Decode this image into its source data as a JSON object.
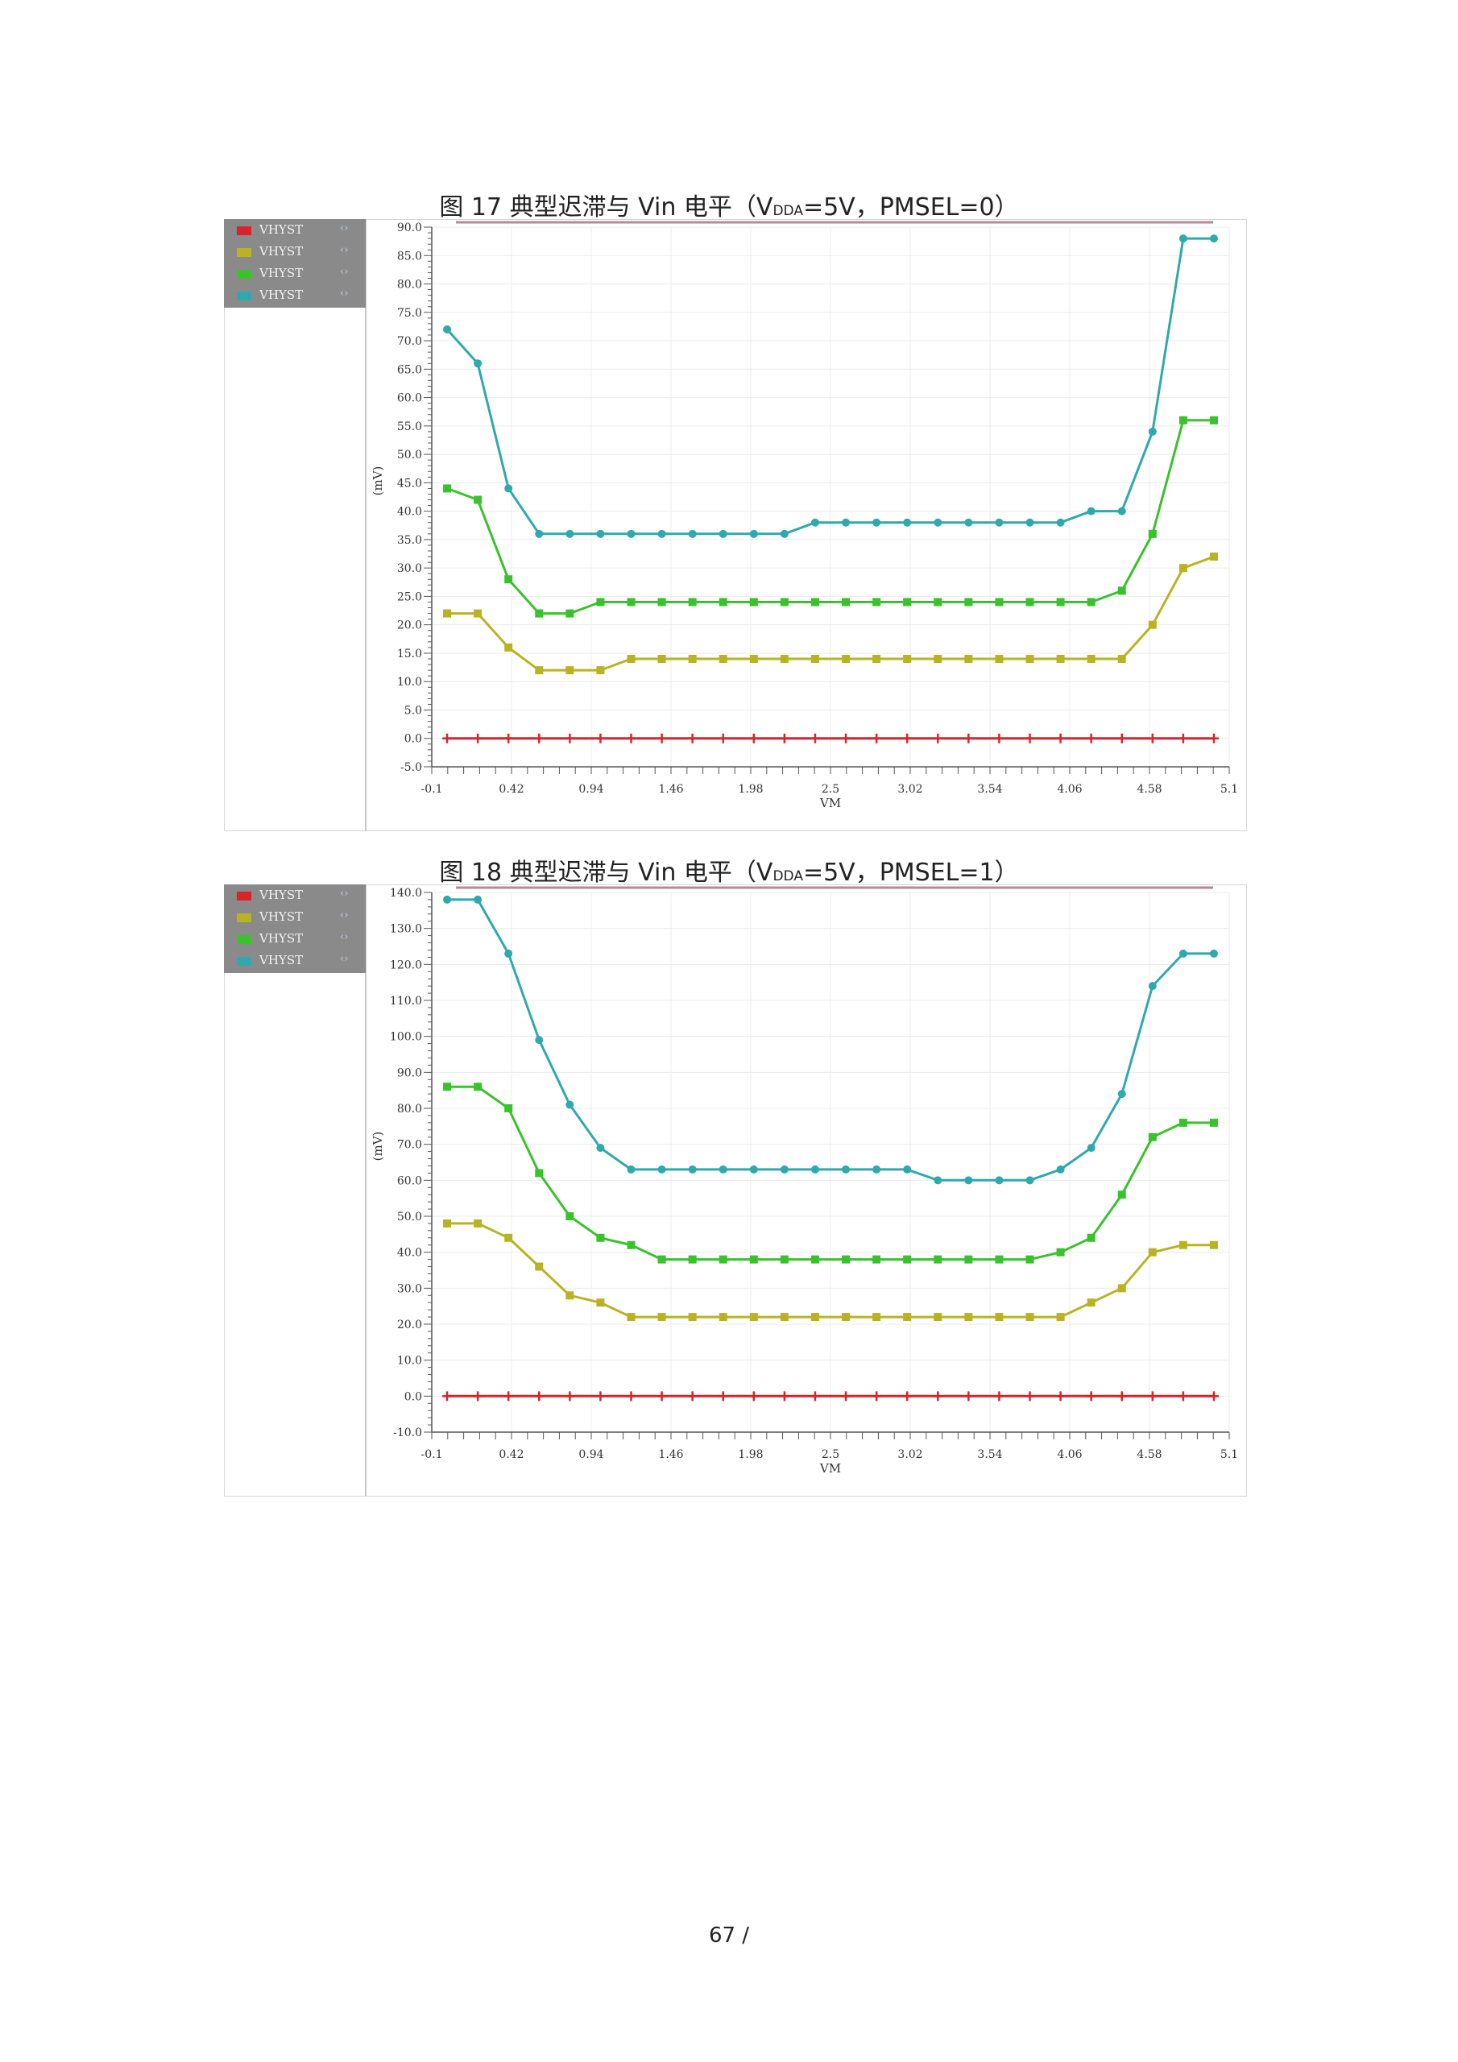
{
  "figures": [
    {
      "caption": {
        "pre": "图  17 典型迟滞与 Vin  电平（V",
        "sub": "DDA",
        "post": "=5V，PMSEL=0）"
      }
    },
    {
      "caption": {
        "pre": "图  18 典型迟滞与 Vin  电平（V",
        "sub": "DDA",
        "post": "=5V，PMSEL=1）"
      }
    }
  ],
  "chart_data": [
    {
      "type": "line",
      "xlabel": "VM",
      "ylabel": "(mV)",
      "xlim": [
        -0.1,
        5.1
      ],
      "ylim": [
        -5,
        90
      ],
      "x_ticks": [
        "-0.1",
        "0.42",
        "0.94",
        "1.46",
        "1.98",
        "2.5",
        "3.02",
        "3.54",
        "4.06",
        "4.58",
        "5.1"
      ],
      "y_ticks": [
        "90.0",
        "85.0",
        "80.0",
        "75.0",
        "70.0",
        "65.0",
        "60.0",
        "55.0",
        "50.0",
        "45.0",
        "40.0",
        "35.0",
        "30.0",
        "25.0",
        "20.0",
        "15.0",
        "10.0",
        "5.0",
        "0.0",
        "-5.0"
      ],
      "x": [
        0,
        0.2,
        0.4,
        0.6,
        0.8,
        1.0,
        1.2,
        1.4,
        1.6,
        1.8,
        2.0,
        2.2,
        2.4,
        2.6,
        2.8,
        3.0,
        3.2,
        3.4,
        3.6,
        3.8,
        4.0,
        4.2,
        4.4,
        4.6,
        4.8,
        5.0
      ],
      "grid": true,
      "legend_position": "left-outside",
      "series": [
        {
          "name": "VHYST",
          "color": "#d8232a",
          "marker": "plus",
          "values": [
            0,
            0,
            0,
            0,
            0,
            0,
            0,
            0,
            0,
            0,
            0,
            0,
            0,
            0,
            0,
            0,
            0,
            0,
            0,
            0,
            0,
            0,
            0,
            0,
            0,
            0
          ]
        },
        {
          "name": "VHYST",
          "color": "#b9b324",
          "marker": "square",
          "values": [
            22,
            22,
            16,
            12,
            12,
            12,
            14,
            14,
            14,
            14,
            14,
            14,
            14,
            14,
            14,
            14,
            14,
            14,
            14,
            14,
            14,
            14,
            14,
            20,
            30,
            32
          ]
        },
        {
          "name": "VHYST",
          "color": "#39c22c",
          "marker": "square",
          "values": [
            44,
            42,
            28,
            22,
            22,
            24,
            24,
            24,
            24,
            24,
            24,
            24,
            24,
            24,
            24,
            24,
            24,
            24,
            24,
            24,
            24,
            24,
            26,
            36,
            56,
            56
          ]
        },
        {
          "name": "VHYST",
          "color": "#2fa9ad",
          "marker": "circle",
          "values": [
            72,
            66,
            44,
            36,
            36,
            36,
            36,
            36,
            36,
            36,
            36,
            36,
            38,
            38,
            38,
            38,
            38,
            38,
            38,
            38,
            38,
            40,
            40,
            54,
            88,
            88
          ]
        }
      ]
    },
    {
      "type": "line",
      "xlabel": "VM",
      "ylabel": "(mV)",
      "xlim": [
        -0.1,
        5.1
      ],
      "ylim": [
        -10,
        140
      ],
      "x_ticks": [
        "-0.1",
        "0.42",
        "0.94",
        "1.46",
        "1.98",
        "2.5",
        "3.02",
        "3.54",
        "4.06",
        "4.58",
        "5.1"
      ],
      "y_ticks": [
        "140.0",
        "130.0",
        "120.0",
        "110.0",
        "100.0",
        "90.0",
        "80.0",
        "70.0",
        "60.0",
        "50.0",
        "40.0",
        "30.0",
        "20.0",
        "10.0",
        "0.0",
        "-10.0"
      ],
      "x": [
        0,
        0.2,
        0.4,
        0.6,
        0.8,
        1.0,
        1.2,
        1.4,
        1.6,
        1.8,
        2.0,
        2.2,
        2.4,
        2.6,
        2.8,
        3.0,
        3.2,
        3.4,
        3.6,
        3.8,
        4.0,
        4.2,
        4.4,
        4.6,
        4.8,
        5.0
      ],
      "grid": true,
      "legend_position": "left-outside",
      "series": [
        {
          "name": "VHYST",
          "color": "#d8232a",
          "marker": "plus",
          "values": [
            0,
            0,
            0,
            0,
            0,
            0,
            0,
            0,
            0,
            0,
            0,
            0,
            0,
            0,
            0,
            0,
            0,
            0,
            0,
            0,
            0,
            0,
            0,
            0,
            0,
            0
          ]
        },
        {
          "name": "VHYST",
          "color": "#b9b324",
          "marker": "square",
          "values": [
            48,
            48,
            44,
            36,
            28,
            26,
            22,
            22,
            22,
            22,
            22,
            22,
            22,
            22,
            22,
            22,
            22,
            22,
            22,
            22,
            22,
            26,
            30,
            40,
            42,
            42
          ]
        },
        {
          "name": "VHYST",
          "color": "#39c22c",
          "marker": "square",
          "values": [
            86,
            86,
            80,
            62,
            50,
            44,
            42,
            38,
            38,
            38,
            38,
            38,
            38,
            38,
            38,
            38,
            38,
            38,
            38,
            38,
            40,
            44,
            56,
            72,
            76,
            76
          ]
        },
        {
          "name": "VHYST",
          "color": "#2fa9ad",
          "marker": "circle",
          "values": [
            138,
            138,
            123,
            99,
            81,
            69,
            63,
            63,
            63,
            63,
            63,
            63,
            63,
            63,
            63,
            63,
            60,
            60,
            60,
            60,
            63,
            69,
            84,
            114,
            123,
            123
          ]
        }
      ]
    }
  ],
  "page_number": "67 /"
}
